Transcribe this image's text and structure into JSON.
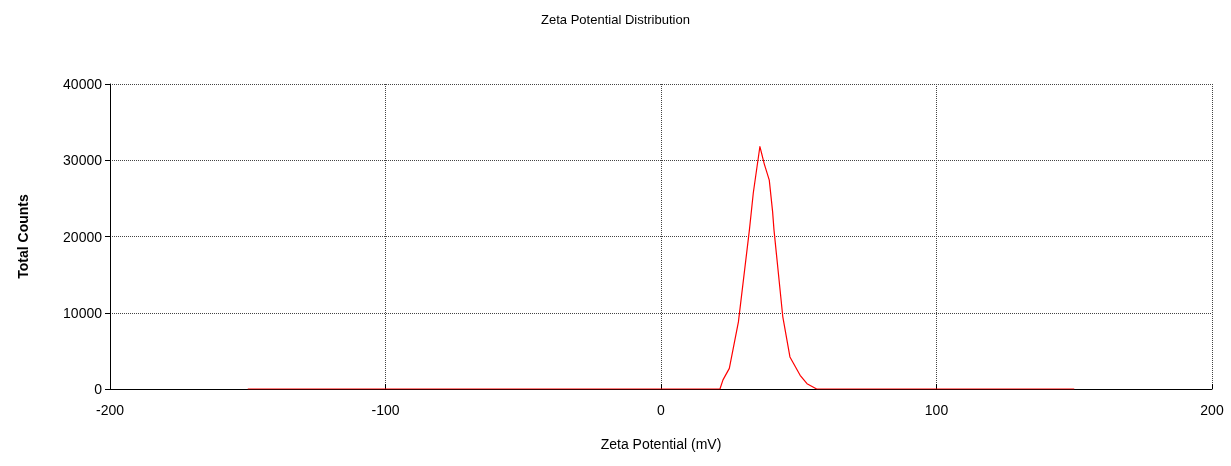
{
  "chart_data": {
    "type": "line",
    "title": "Zeta Potential Distribution",
    "xlabel": "Zeta Potential (mV)",
    "ylabel": "Total Counts",
    "series": [
      {
        "color": "#ff0000",
        "x": [
          -150,
          21.4,
          22.5,
          24.8,
          28.1,
          32.1,
          33.5,
          35.9,
          37.5,
          39.3,
          40.5,
          41,
          44.2,
          46.8,
          50.5,
          53,
          56.5,
          150
        ],
        "values": [
          0,
          0,
          1200,
          2700,
          8800,
          20900,
          25700,
          31800,
          29500,
          27400,
          23300,
          20900,
          9500,
          4200,
          1800,
          700,
          0,
          0
        ]
      }
    ],
    "xlim": [
      -200,
      200
    ],
    "xticks": [
      -200,
      -100,
      0,
      100,
      200
    ],
    "ylim": [
      0,
      40000
    ],
    "yticks": [
      0,
      10000,
      20000,
      30000,
      40000
    ],
    "grid": true,
    "marker": "none",
    "line_style": "solid"
  }
}
